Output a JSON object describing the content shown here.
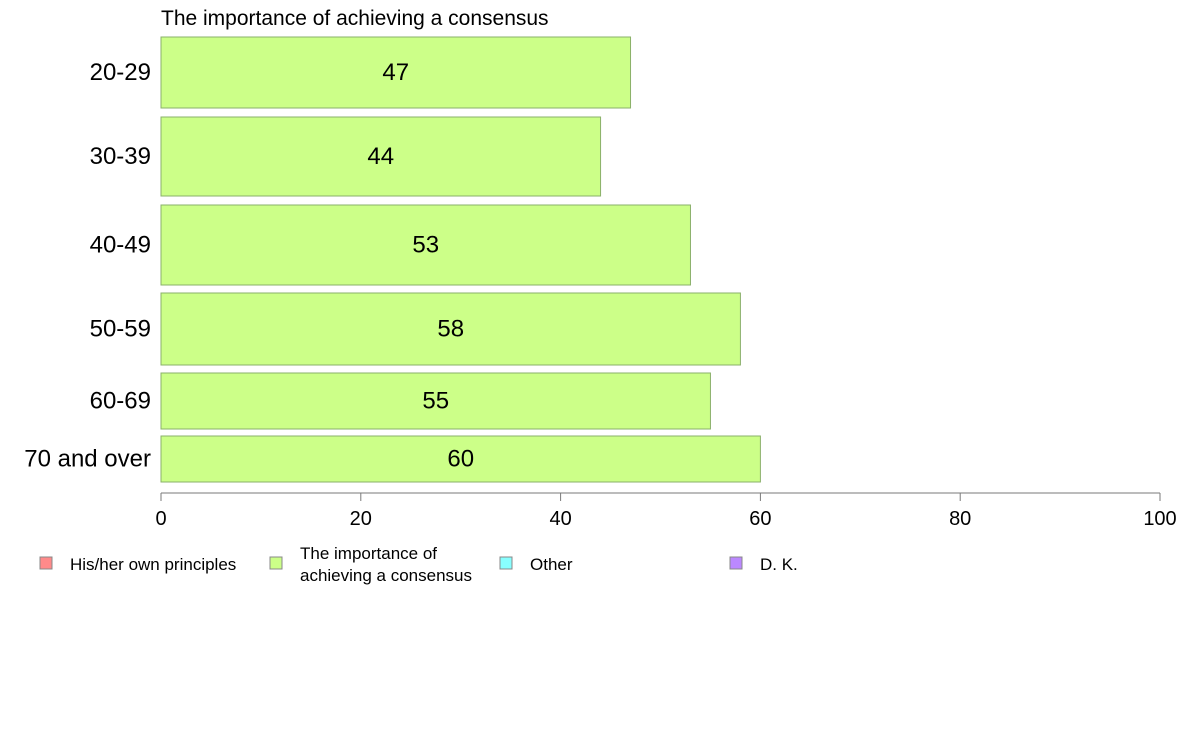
{
  "chart_data": {
    "type": "bar",
    "orientation": "horizontal",
    "title": "The importance of achieving a consensus",
    "categories": [
      "20-29",
      "30-39",
      "40-49",
      "50-59",
      "60-69",
      "70 and over"
    ],
    "values": [
      47,
      44,
      53,
      58,
      55,
      60
    ],
    "value_labels": [
      "47",
      "44",
      "53",
      "58",
      "55",
      "60"
    ],
    "xlim": [
      0,
      100
    ],
    "xticks": [
      0,
      20,
      40,
      60,
      80,
      100
    ],
    "xtick_labels": [
      "0",
      "20",
      "40",
      "60",
      "80",
      "100"
    ],
    "grid": false,
    "bar_color": "#ccff88",
    "bar_stroke": "#8ab06a",
    "legend_position": "bottom",
    "legend": [
      {
        "label": "His/her own principles",
        "color": "#ff8a8a"
      },
      {
        "label": "The importance of achieving a consensus",
        "lines": [
          "The importance of",
          "achieving a consensus"
        ],
        "color": "#ccff88"
      },
      {
        "label": "Other",
        "color": "#88ffff"
      },
      {
        "label": "D. K.",
        "color": "#bb88ff"
      }
    ]
  }
}
